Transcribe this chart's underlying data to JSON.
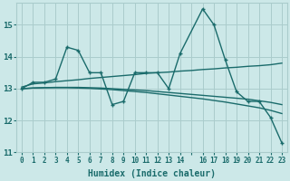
{
  "xlabel": "Humidex (Indice chaleur)",
  "ylabel": "",
  "background_color": "#cce8e8",
  "grid_color": "#aacccc",
  "line_color": "#1a6b6b",
  "xlim": [
    -0.5,
    23.5
  ],
  "ylim": [
    11,
    15.7
  ],
  "yticks": [
    11,
    12,
    13,
    14,
    15
  ],
  "main_line_x": [
    0,
    1,
    2,
    3,
    4,
    5,
    6,
    7,
    8,
    9,
    10,
    11,
    12,
    13,
    14,
    16,
    17,
    18,
    19,
    20,
    21,
    22,
    23
  ],
  "main_line_y": [
    13.0,
    13.2,
    13.2,
    13.3,
    14.3,
    14.2,
    13.5,
    13.5,
    12.5,
    12.6,
    13.5,
    13.5,
    13.5,
    13.0,
    14.1,
    15.5,
    15.0,
    13.9,
    12.9,
    12.6,
    12.6,
    12.1,
    11.3
  ],
  "line2_x": [
    0,
    1,
    2,
    3,
    4,
    5,
    6,
    7,
    8,
    9,
    10,
    11,
    12,
    13,
    14,
    15,
    16,
    17,
    18,
    19,
    20,
    21,
    22,
    23
  ],
  "line2_y": [
    13.05,
    13.15,
    13.18,
    13.22,
    13.25,
    13.28,
    13.32,
    13.35,
    13.38,
    13.41,
    13.44,
    13.48,
    13.5,
    13.52,
    13.55,
    13.57,
    13.6,
    13.62,
    13.65,
    13.67,
    13.7,
    13.72,
    13.75,
    13.8
  ],
  "line3_x": [
    0,
    1,
    2,
    3,
    4,
    5,
    6,
    7,
    8,
    9,
    10,
    11,
    12,
    13,
    14,
    15,
    16,
    17,
    18,
    19,
    20,
    21,
    22,
    23
  ],
  "line3_y": [
    13.0,
    13.02,
    13.03,
    13.04,
    13.04,
    13.04,
    13.03,
    13.02,
    13.0,
    12.98,
    12.96,
    12.94,
    12.91,
    12.88,
    12.85,
    12.82,
    12.79,
    12.76,
    12.73,
    12.7,
    12.67,
    12.62,
    12.57,
    12.5
  ],
  "line4_x": [
    0,
    1,
    2,
    3,
    4,
    5,
    6,
    7,
    8,
    9,
    10,
    11,
    12,
    13,
    14,
    15,
    16,
    17,
    18,
    19,
    20,
    21,
    22,
    23
  ],
  "line4_y": [
    13.0,
    13.02,
    13.03,
    13.03,
    13.03,
    13.02,
    13.01,
    12.99,
    12.97,
    12.94,
    12.91,
    12.88,
    12.84,
    12.8,
    12.76,
    12.72,
    12.68,
    12.63,
    12.58,
    12.52,
    12.46,
    12.4,
    12.32,
    12.22
  ],
  "marker": "+",
  "markersize": 3.5,
  "linewidth": 1.0
}
